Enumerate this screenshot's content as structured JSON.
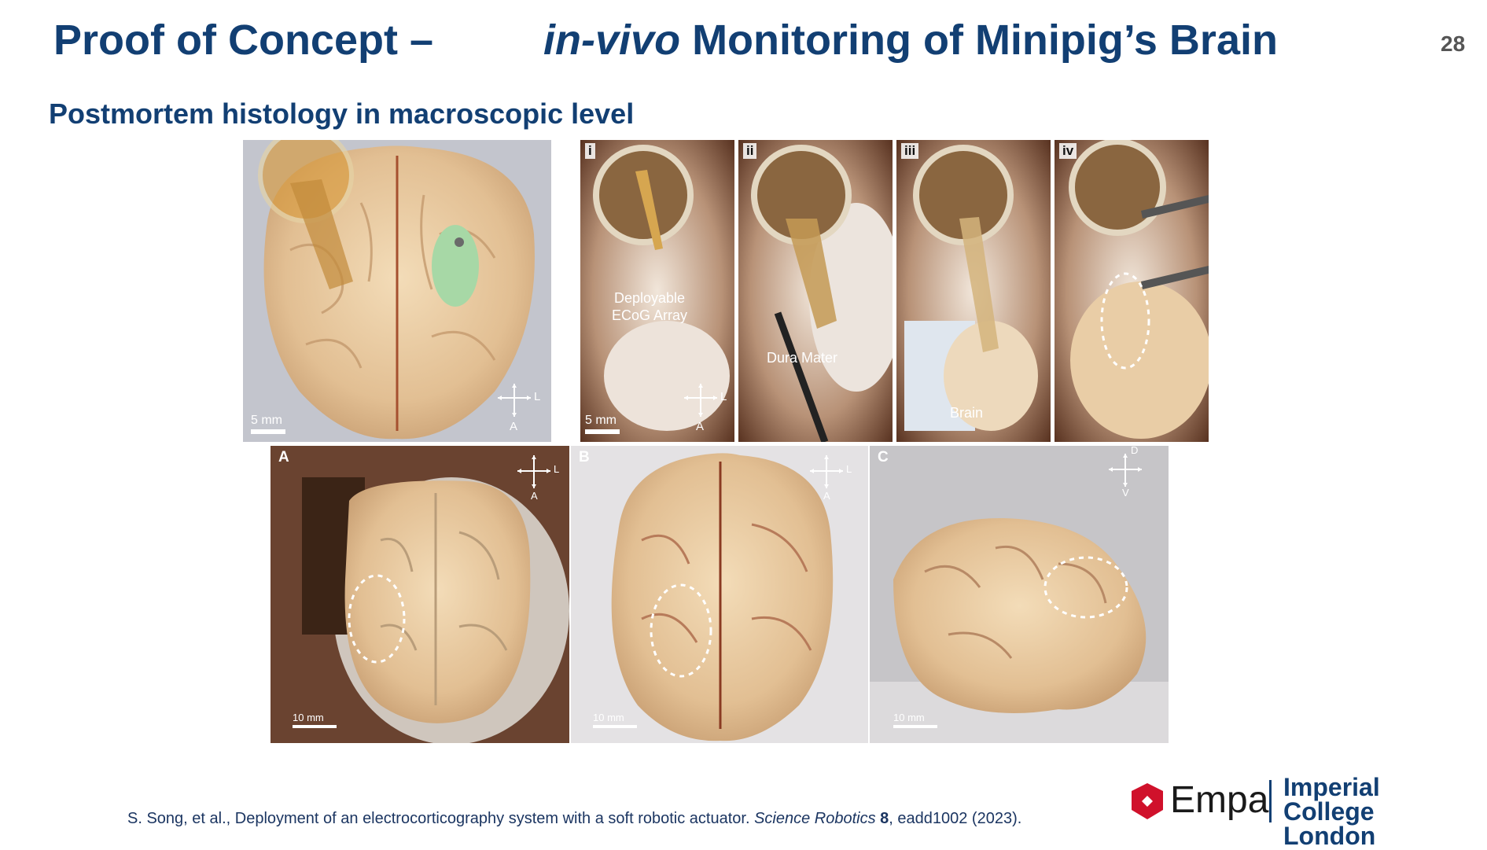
{
  "slide": {
    "title_prefix": "Proof of Concept –",
    "title_italic": "in-vivo",
    "title_rest": " Monitoring of Minipig’s Brain",
    "page_number": "28",
    "subtitle": "Postmortem histology in macroscopic level"
  },
  "top_panels": {
    "overview": {
      "scale": "5 mm",
      "compass": {
        "right": "L",
        "bottom": "A"
      }
    },
    "steps": [
      {
        "label": "i",
        "scale": "5 mm",
        "callout": "Deployable\nECoG Array",
        "compass": {
          "right": "L",
          "bottom": "A"
        }
      },
      {
        "label": "ii",
        "callout": "Dura Mater"
      },
      {
        "label": "iii",
        "callout": "Brain"
      },
      {
        "label": "iv"
      }
    ]
  },
  "bottom_panels": [
    {
      "label": "A",
      "scale": "10 mm",
      "compass": {
        "right": "L",
        "bottom": "A"
      }
    },
    {
      "label": "B",
      "scale": "10 mm",
      "compass": {
        "right": "L",
        "bottom": "A"
      }
    },
    {
      "label": "C",
      "scale": "10 mm",
      "compass": {
        "top": "D",
        "bottom": "V"
      }
    }
  ],
  "citation": {
    "authors": "S. Song, et al., Deployment of an electrocorticography system with a soft robotic actuator. ",
    "journal": "Science Robotics",
    "volume": "8",
    "rest": ", eadd1002 (2023)."
  },
  "logos": {
    "empa": "Empa",
    "imperial_line1": "Imperial College",
    "imperial_line2": "London"
  },
  "colors": {
    "title_blue": "#123f73",
    "brain_tissue": "#e8caa2",
    "empa_red": "#d0112b"
  }
}
